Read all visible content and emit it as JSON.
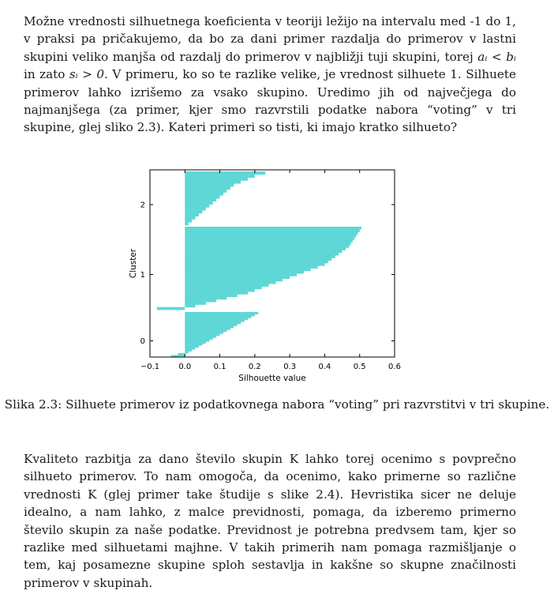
{
  "text_intro": {
    "part1": "Možne vrednosti silhuetnega koeficienta v teoriji ležijo na intervalu med -1 do 1, v praksi pa pričakujemo, da bo za dani primer razdalja do primerov v lastni skupini veliko manjša od razdalj do primerov v najbližji tuji skupini, torej ",
    "math1": "aᵢ < bᵢ",
    "part2": " in zato ",
    "math2": "sᵢ > 0",
    "part3": ". V primeru, ko so te razlike velike, je vrednost silhuete 1. Silhuete primerov lahko izrišemo za vsako skupino. Uredimo jih od največjega do najmanjšega (za primer, kjer smo razvrstili podatke nabora “voting” v tri skupine, glej sliko 2.3). Kateri primeri so tisti, ki imajo kratko silhueto?"
  },
  "caption": "Slika 2.3: Silhuete primerov iz podatkovnega nabora “voting” pri razvrstitvi v tri skupine.",
  "text_body": "Kvaliteto razbitja za dano število skupin K lahko torej ocenimo s povprečno silhueto primerov. To nam omogoča, da ocenimo, kako primerne so različne vrednosti K (glej primer take študije s slike 2.4). Hevristika sicer ne deluje idealno, a nam lahko, z malce previdnosti, pomaga, da izberemo primerno število skupin za naše podatke. Previdnost je potrebna predvsem tam, kjer so razlike med silhuetami majhne. V takih primerih nam pomaga razmišljanje o tem, kaj posamezne skupine sploh sestavlja in kakšne so skupne značilnosti primerov v skupinah.",
  "chart_data": {
    "type": "bar",
    "orientation": "horizontal",
    "xlabel": "Silhouette value",
    "ylabel": "Cluster",
    "xlim": [
      -0.1,
      0.6
    ],
    "x_ticks": [
      "−0.1",
      "0.0",
      "0.1",
      "0.2",
      "0.3",
      "0.4",
      "0.5",
      "0.6"
    ],
    "y_ticks": [
      "0",
      "1",
      "2"
    ],
    "bar_color": "#5fd7d7",
    "clusters": [
      {
        "label": "0",
        "sorted_silhouettes": [
          0.21,
          0.2,
          0.19,
          0.18,
          0.17,
          0.16,
          0.15,
          0.14,
          0.13,
          0.12,
          0.11,
          0.1,
          0.09,
          0.08,
          0.07,
          0.06,
          0.05,
          0.04,
          0.03,
          0.02,
          0.01,
          -0.02,
          -0.04
        ]
      },
      {
        "label": "1",
        "sorted_silhouettes": [
          0.505,
          0.5,
          0.495,
          0.49,
          0.485,
          0.48,
          0.475,
          0.47,
          0.46,
          0.45,
          0.44,
          0.43,
          0.42,
          0.41,
          0.4,
          0.38,
          0.36,
          0.34,
          0.32,
          0.3,
          0.28,
          0.26,
          0.24,
          0.22,
          0.2,
          0.18,
          0.15,
          0.12,
          0.09,
          0.06,
          0.03,
          -0.08
        ]
      },
      {
        "label": "2",
        "sorted_silhouettes": [
          0.23,
          0.2,
          0.18,
          0.16,
          0.14,
          0.13,
          0.12,
          0.11,
          0.1,
          0.09,
          0.08,
          0.07,
          0.06,
          0.05,
          0.04,
          0.03,
          0.02,
          0.01
        ]
      }
    ]
  }
}
